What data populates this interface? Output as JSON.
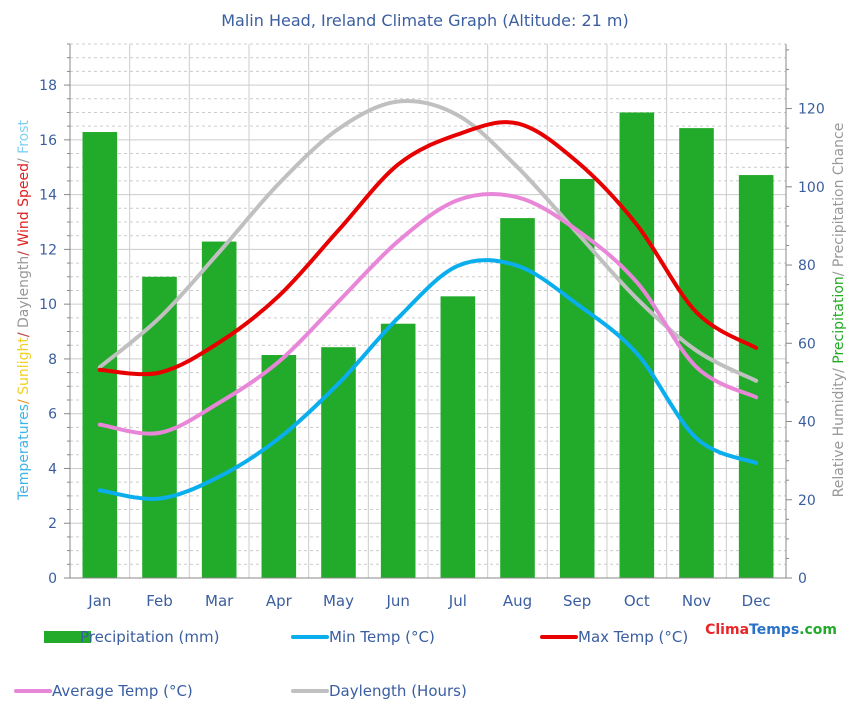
{
  "chart_data": {
    "type": "bar",
    "title": "Malin Head, Ireland Climate Graph (Altitude: 21 m)",
    "categories": [
      "Jan",
      "Feb",
      "Mar",
      "Apr",
      "May",
      "Jun",
      "Jul",
      "Aug",
      "Sep",
      "Oct",
      "Nov",
      "Dec"
    ],
    "ylabel_left_parts": [
      {
        "text": "Temperatures",
        "color": "#3fb4e8"
      },
      {
        "text": "/ ",
        "color": "#e89a2c"
      },
      {
        "text": "Sunlight",
        "color": "#f0d020"
      },
      {
        "text": "/ ",
        "color": "#c0403c"
      },
      {
        "text": "Daylength",
        "color": "#999999"
      },
      {
        "text": "/ ",
        "color": "#c0403c"
      },
      {
        "text": "Wind Speed",
        "color": "#e02020"
      },
      {
        "text": "/ ",
        "color": "#999999"
      },
      {
        "text": "Frost",
        "color": "#7ed0f0"
      }
    ],
    "ylabel_right_parts": [
      {
        "text": "Relative Humidity",
        "color": "#999999"
      },
      {
        "text": "/ ",
        "color": "#999999"
      },
      {
        "text": "Precipitation",
        "color": "#22aa22"
      },
      {
        "text": "/ ",
        "color": "#999999"
      },
      {
        "text": "Precipitation Chance",
        "color": "#999999"
      }
    ],
    "ylim_left": [
      0,
      19.5
    ],
    "yticks_left": [
      0,
      2,
      4,
      6,
      8,
      10,
      12,
      14,
      16,
      18
    ],
    "ylim_right": [
      0,
      136.5
    ],
    "yticks_right": [
      0,
      20,
      40,
      60,
      80,
      100,
      120
    ],
    "grid": true,
    "precip_series": {
      "name": "Precipitation (mm)",
      "color": "#22aa2a",
      "axis": "right",
      "values": [
        114,
        77,
        86,
        57,
        59,
        65,
        72,
        92,
        102,
        119,
        115,
        103
      ]
    },
    "line_series": [
      {
        "name": "Min Temp (°C)",
        "color": "#0aaeec",
        "axis": "left",
        "values": [
          3.2,
          2.9,
          3.7,
          5.1,
          7.1,
          9.5,
          11.4,
          11.4,
          10.0,
          8.2,
          5.1,
          4.2
        ]
      },
      {
        "name": "Max Temp (°C)",
        "color": "#e80000",
        "axis": "left",
        "values": [
          7.6,
          7.5,
          8.6,
          10.3,
          12.7,
          15.1,
          16.2,
          16.6,
          15.2,
          12.9,
          9.7,
          8.4
        ]
      },
      {
        "name": "Average Temp (°C)",
        "color": "#e887d8",
        "axis": "left",
        "values": [
          5.6,
          5.3,
          6.4,
          7.9,
          10.1,
          12.3,
          13.8,
          13.9,
          12.7,
          10.8,
          7.7,
          6.6
        ]
      },
      {
        "name": "Daylength (Hours)",
        "color": "#c0c0c0",
        "axis": "left",
        "values": [
          7.7,
          9.5,
          11.9,
          14.4,
          16.4,
          17.4,
          16.9,
          15.0,
          12.6,
          10.2,
          8.3,
          7.2
        ]
      }
    ],
    "legend_rows": [
      [
        {
          "label": "Precipitation (mm)",
          "kind": "bar",
          "color": "#22aa2a"
        },
        {
          "label": "Min Temp (°C)",
          "kind": "line",
          "color": "#0aaeec"
        },
        {
          "label": "Max Temp (°C)",
          "kind": "line",
          "color": "#e80000"
        }
      ],
      [
        {
          "label": "Average Temp (°C)",
          "kind": "line",
          "color": "#e887d8"
        },
        {
          "label": "Daylength (Hours)",
          "kind": "line",
          "color": "#c0c0c0"
        }
      ]
    ],
    "legend_placement": "bottom",
    "logo": {
      "parts": [
        {
          "text": "Clima",
          "color": "#e8262a"
        },
        {
          "text": "Temps",
          "color": "#2a72c8"
        },
        {
          "text": ".com",
          "color": "#22aa2a"
        }
      ]
    },
    "colors": {
      "title": "#3a5ea0",
      "tick_label": "#3a5ea0",
      "axis_tick": "#888888",
      "grid": "#cccccc"
    }
  }
}
